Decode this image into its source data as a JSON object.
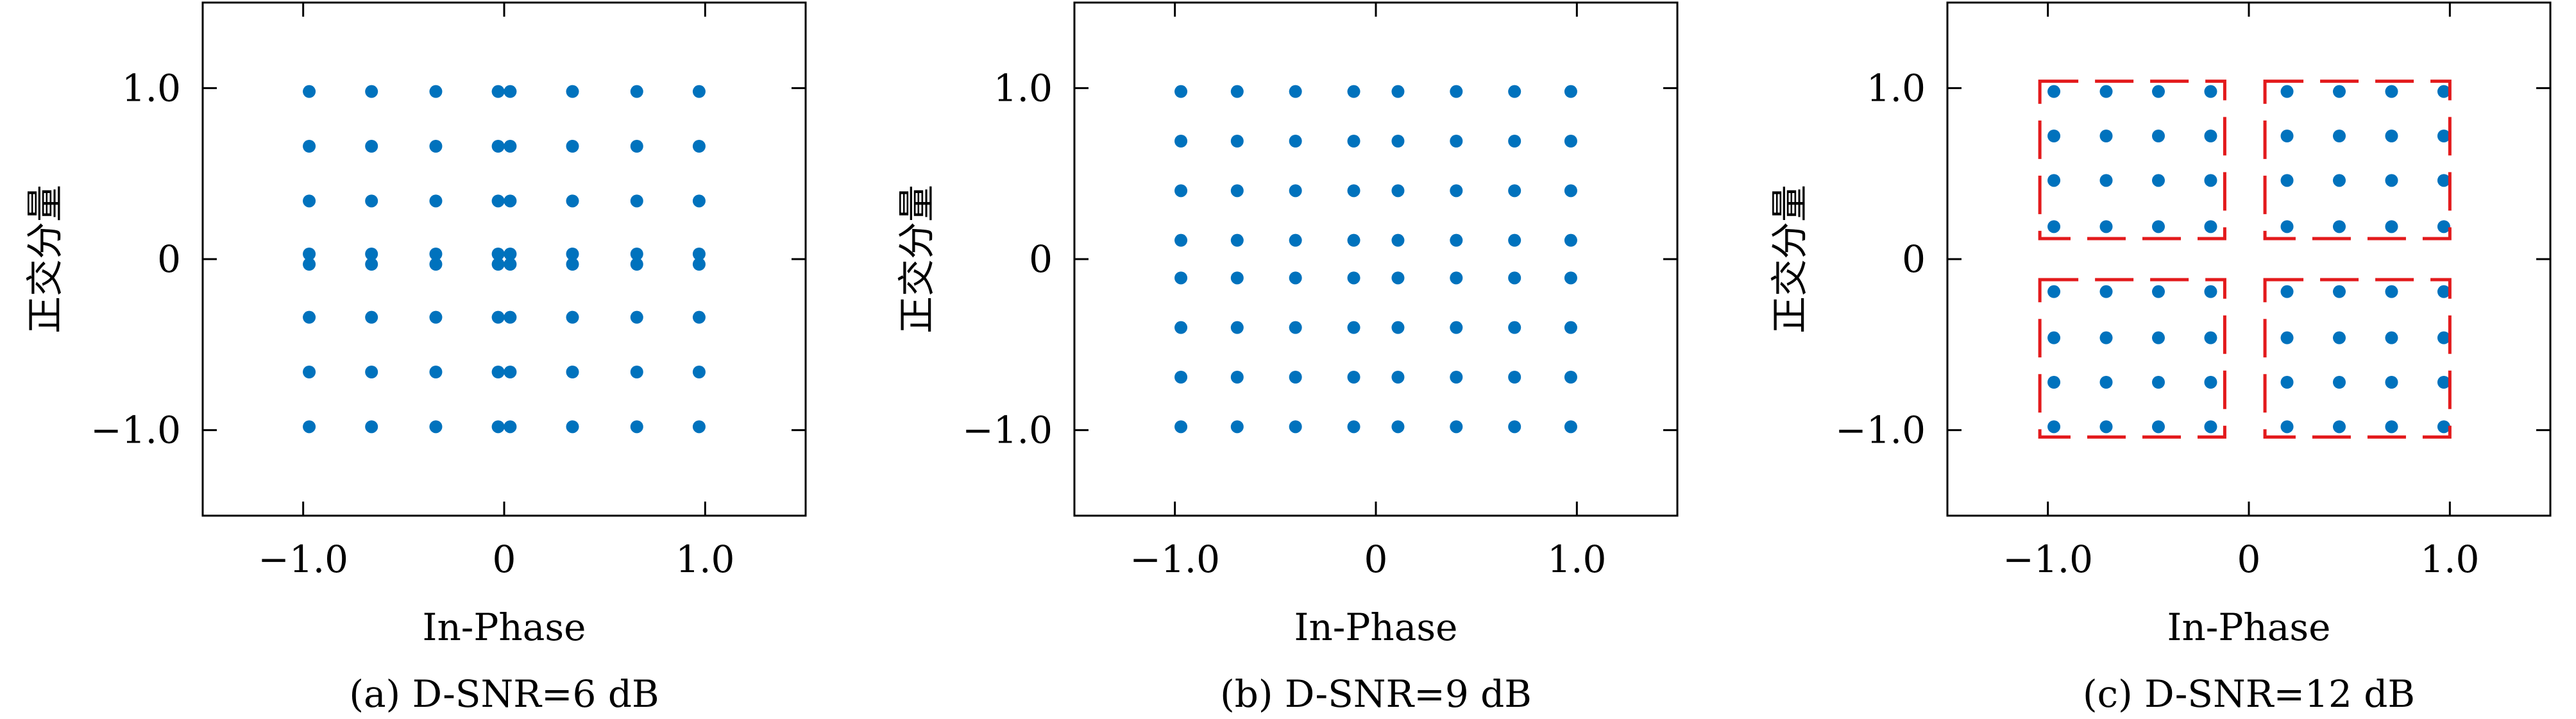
{
  "chart_data": [
    {
      "type": "scatter",
      "caption": "(a) D-SNR=6 dB",
      "xlabel": "In-Phase",
      "ylabel": "正交分量",
      "xlim": [
        -1.5,
        1.5
      ],
      "ylim": [
        -1.5,
        1.5
      ],
      "xticks": [
        -1.0,
        0,
        1.0
      ],
      "xtick_labels": [
        "−1.0",
        "0",
        "1.0"
      ],
      "yticks": [
        -1.0,
        0,
        1.0
      ],
      "ytick_labels": [
        "−1.0",
        "0",
        "1.0"
      ],
      "grid": false,
      "levels_x": [
        -0.97,
        -0.66,
        -0.34,
        -0.03,
        0.03,
        0.34,
        0.66,
        0.97
      ],
      "levels_y": [
        -0.98,
        -0.66,
        -0.34,
        -0.03,
        0.03,
        0.34,
        0.66,
        0.98
      ],
      "groups": []
    },
    {
      "type": "scatter",
      "caption": "(b) D-SNR=9 dB",
      "xlabel": "In-Phase",
      "ylabel": "正交分量",
      "xlim": [
        -1.5,
        1.5
      ],
      "ylim": [
        -1.5,
        1.5
      ],
      "xticks": [
        -1.0,
        0,
        1.0
      ],
      "xtick_labels": [
        "−1.0",
        "0",
        "1.0"
      ],
      "yticks": [
        -1.0,
        0,
        1.0
      ],
      "ytick_labels": [
        "−1.0",
        "0",
        "1.0"
      ],
      "grid": false,
      "levels_x": [
        -0.97,
        -0.69,
        -0.4,
        -0.11,
        0.11,
        0.4,
        0.69,
        0.97
      ],
      "levels_y": [
        -0.98,
        -0.69,
        -0.4,
        -0.11,
        0.11,
        0.4,
        0.69,
        0.98
      ],
      "groups": []
    },
    {
      "type": "scatter",
      "caption": "(c) D-SNR=12 dB",
      "xlabel": "In-Phase",
      "ylabel": "正交分量",
      "xlim": [
        -1.5,
        1.5
      ],
      "ylim": [
        -1.5,
        1.5
      ],
      "xticks": [
        -1.0,
        0,
        1.0
      ],
      "xtick_labels": [
        "−1.0",
        "0",
        "1.0"
      ],
      "yticks": [
        -1.0,
        0,
        1.0
      ],
      "ytick_labels": [
        "−1.0",
        "0",
        "1.0"
      ],
      "grid": false,
      "levels_x": [
        -0.97,
        -0.71,
        -0.45,
        -0.19,
        0.19,
        0.45,
        0.71,
        0.97
      ],
      "levels_y": [
        -0.98,
        -0.72,
        -0.46,
        -0.19,
        0.19,
        0.46,
        0.72,
        0.98
      ],
      "groups": [
        {
          "x": [
            -1.04,
            -0.12
          ],
          "y": [
            0.12,
            1.04
          ]
        },
        {
          "x": [
            0.08,
            1.0
          ],
          "y": [
            0.12,
            1.04
          ]
        },
        {
          "x": [
            -1.04,
            -0.12
          ],
          "y": [
            -1.04,
            -0.12
          ]
        },
        {
          "x": [
            0.08,
            1.0
          ],
          "y": [
            -1.04,
            -0.12
          ]
        }
      ]
    }
  ]
}
